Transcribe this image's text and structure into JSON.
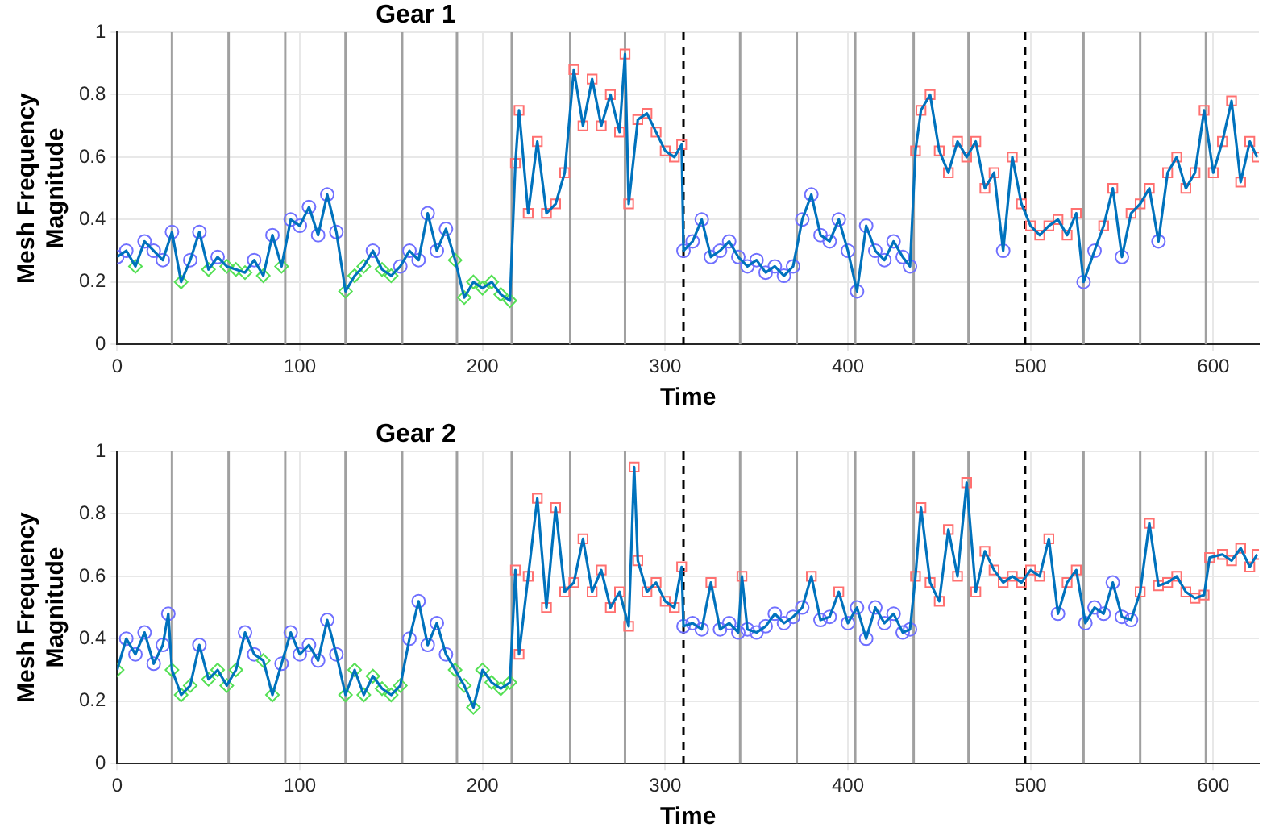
{
  "chart_data": [
    {
      "type": "line",
      "title": "Gear 1",
      "xlabel": "Time",
      "ylabel": "Mesh Frequency Magnitude",
      "xlim": [
        0,
        625
      ],
      "xticks": [
        0,
        100,
        200,
        300,
        400,
        500,
        600
      ],
      "ylim": [
        0,
        1
      ],
      "yticks": [
        0,
        0.2,
        0.4,
        0.6,
        0.8,
        1
      ],
      "grid": true,
      "legend": false,
      "ref_lines": [
        {
          "axis": "x",
          "value": 30,
          "color": "#a0a0a0"
        },
        {
          "axis": "x",
          "value": 61,
          "color": "#a0a0a0"
        },
        {
          "axis": "x",
          "value": 92,
          "color": "#a0a0a0"
        },
        {
          "axis": "x",
          "value": 125,
          "color": "#a0a0a0"
        },
        {
          "axis": "x",
          "value": 156,
          "color": "#a0a0a0"
        },
        {
          "axis": "x",
          "value": 186,
          "color": "#a0a0a0"
        },
        {
          "axis": "x",
          "value": 216,
          "color": "#a0a0a0"
        },
        {
          "axis": "x",
          "value": 248,
          "color": "#a0a0a0"
        },
        {
          "axis": "x",
          "value": 278,
          "color": "#a0a0a0"
        },
        {
          "axis": "x",
          "value": 341,
          "color": "#a0a0a0"
        },
        {
          "axis": "x",
          "value": 372,
          "color": "#a0a0a0"
        },
        {
          "axis": "x",
          "value": 404,
          "color": "#a0a0a0"
        },
        {
          "axis": "x",
          "value": 436,
          "color": "#a0a0a0"
        },
        {
          "axis": "x",
          "value": 466,
          "color": "#a0a0a0"
        },
        {
          "axis": "x",
          "value": 529,
          "color": "#a0a0a0"
        },
        {
          "axis": "x",
          "value": 560,
          "color": "#a0a0a0"
        },
        {
          "axis": "x",
          "value": 596,
          "color": "#a0a0a0"
        },
        {
          "axis": "x",
          "value": 310,
          "color": "#000000",
          "line_style": "dashed"
        },
        {
          "axis": "x",
          "value": 497,
          "color": "#000000",
          "line_style": "dashed"
        }
      ],
      "series": [
        {
          "type": "line",
          "color": "#0072bd",
          "marker": "none",
          "x": [
            0,
            5,
            10,
            15,
            20,
            25,
            30,
            35,
            40,
            45,
            50,
            55,
            60,
            65,
            70,
            75,
            80,
            85,
            90,
            95,
            100,
            105,
            110,
            115,
            120,
            125,
            130,
            135,
            140,
            145,
            150,
            155,
            160,
            165,
            170,
            175,
            180,
            185,
            190,
            195,
            200,
            205,
            210,
            215,
            218,
            220,
            225,
            230,
            235,
            240,
            245,
            250,
            255,
            260,
            265,
            270,
            275,
            278,
            280,
            285,
            290,
            295,
            300,
            305,
            309,
            310,
            315,
            320,
            325,
            330,
            335,
            340,
            345,
            350,
            355,
            360,
            365,
            370,
            375,
            380,
            385,
            390,
            395,
            400,
            405,
            410,
            415,
            420,
            425,
            430,
            434,
            437,
            440,
            445,
            450,
            455,
            460,
            465,
            470,
            475,
            480,
            485,
            490,
            495,
            500,
            505,
            510,
            515,
            520,
            525,
            529,
            535,
            540,
            545,
            550,
            555,
            560,
            565,
            570,
            575,
            580,
            585,
            590,
            595,
            600,
            605,
            610,
            615,
            620,
            624
          ],
          "values": [
            0.28,
            0.3,
            0.25,
            0.33,
            0.3,
            0.27,
            0.36,
            0.2,
            0.27,
            0.36,
            0.24,
            0.28,
            0.25,
            0.24,
            0.23,
            0.27,
            0.22,
            0.35,
            0.25,
            0.4,
            0.38,
            0.44,
            0.35,
            0.48,
            0.36,
            0.17,
            0.22,
            0.25,
            0.3,
            0.24,
            0.22,
            0.25,
            0.3,
            0.27,
            0.42,
            0.3,
            0.37,
            0.27,
            0.15,
            0.2,
            0.18,
            0.2,
            0.16,
            0.14,
            0.58,
            0.75,
            0.42,
            0.65,
            0.42,
            0.45,
            0.55,
            0.88,
            0.7,
            0.85,
            0.7,
            0.8,
            0.68,
            0.93,
            0.45,
            0.72,
            0.74,
            0.68,
            0.62,
            0.6,
            0.64,
            0.3,
            0.33,
            0.4,
            0.28,
            0.3,
            0.33,
            0.28,
            0.25,
            0.27,
            0.23,
            0.25,
            0.22,
            0.25,
            0.4,
            0.48,
            0.35,
            0.33,
            0.4,
            0.3,
            0.17,
            0.38,
            0.3,
            0.27,
            0.33,
            0.28,
            0.25,
            0.62,
            0.75,
            0.8,
            0.62,
            0.55,
            0.65,
            0.6,
            0.65,
            0.5,
            0.55,
            0.3,
            0.6,
            0.45,
            0.38,
            0.35,
            0.38,
            0.4,
            0.35,
            0.42,
            0.2,
            0.3,
            0.38,
            0.5,
            0.28,
            0.42,
            0.45,
            0.5,
            0.33,
            0.55,
            0.6,
            0.5,
            0.55,
            0.75,
            0.55,
            0.65,
            0.78,
            0.52,
            0.65,
            0.6
          ]
        },
        {
          "type": "scatter",
          "color": "#55e055",
          "marker": "diamond",
          "x": [
            10,
            35,
            50,
            60,
            65,
            70,
            80,
            90,
            125,
            130,
            135,
            145,
            150,
            185,
            190,
            195,
            200,
            205,
            210,
            215
          ],
          "values": [
            0.25,
            0.2,
            0.24,
            0.25,
            0.24,
            0.23,
            0.22,
            0.25,
            0.17,
            0.22,
            0.25,
            0.24,
            0.22,
            0.27,
            0.15,
            0.2,
            0.18,
            0.2,
            0.16,
            0.14
          ]
        },
        {
          "type": "scatter",
          "color": "#7070ff",
          "marker": "circle",
          "x": [
            0,
            5,
            15,
            20,
            25,
            30,
            40,
            45,
            55,
            75,
            85,
            95,
            100,
            105,
            110,
            115,
            120,
            140,
            155,
            160,
            165,
            170,
            175,
            180,
            310,
            315,
            320,
            325,
            330,
            335,
            340,
            345,
            350,
            355,
            360,
            365,
            370,
            375,
            380,
            385,
            390,
            395,
            400,
            405,
            410,
            415,
            420,
            425,
            430,
            434,
            485,
            529,
            535,
            550,
            570
          ],
          "values": [
            0.28,
            0.3,
            0.33,
            0.3,
            0.27,
            0.36,
            0.27,
            0.36,
            0.28,
            0.27,
            0.35,
            0.4,
            0.38,
            0.44,
            0.35,
            0.48,
            0.36,
            0.3,
            0.25,
            0.3,
            0.27,
            0.42,
            0.3,
            0.37,
            0.3,
            0.33,
            0.4,
            0.28,
            0.3,
            0.33,
            0.28,
            0.25,
            0.27,
            0.23,
            0.25,
            0.22,
            0.25,
            0.4,
            0.48,
            0.35,
            0.33,
            0.4,
            0.3,
            0.17,
            0.38,
            0.3,
            0.27,
            0.33,
            0.28,
            0.25,
            0.3,
            0.2,
            0.3,
            0.28,
            0.33
          ]
        },
        {
          "type": "scatter",
          "color": "#ff7070",
          "marker": "square",
          "x": [
            218,
            220,
            225,
            230,
            235,
            240,
            245,
            250,
            255,
            260,
            265,
            270,
            275,
            278,
            280,
            285,
            290,
            295,
            300,
            305,
            309,
            437,
            440,
            445,
            450,
            455,
            460,
            465,
            470,
            475,
            480,
            490,
            495,
            500,
            505,
            510,
            515,
            520,
            525,
            540,
            545,
            555,
            560,
            565,
            575,
            580,
            585,
            590,
            595,
            600,
            605,
            610,
            615,
            620,
            624
          ],
          "values": [
            0.58,
            0.75,
            0.42,
            0.65,
            0.42,
            0.45,
            0.55,
            0.88,
            0.7,
            0.85,
            0.7,
            0.8,
            0.68,
            0.93,
            0.45,
            0.72,
            0.74,
            0.68,
            0.62,
            0.6,
            0.64,
            0.62,
            0.75,
            0.8,
            0.62,
            0.55,
            0.65,
            0.6,
            0.65,
            0.5,
            0.55,
            0.6,
            0.45,
            0.38,
            0.35,
            0.38,
            0.4,
            0.35,
            0.42,
            0.38,
            0.5,
            0.42,
            0.45,
            0.5,
            0.55,
            0.6,
            0.5,
            0.55,
            0.75,
            0.55,
            0.65,
            0.78,
            0.52,
            0.65,
            0.6
          ]
        }
      ]
    },
    {
      "type": "line",
      "title": "Gear 2",
      "xlabel": "Time",
      "ylabel": "Mesh Frequency Magnitude",
      "xlim": [
        0,
        625
      ],
      "xticks": [
        0,
        100,
        200,
        300,
        400,
        500,
        600
      ],
      "ylim": [
        0,
        1
      ],
      "yticks": [
        0,
        0.2,
        0.4,
        0.6,
        0.8,
        1
      ],
      "grid": true,
      "legend": false,
      "ref_lines": [
        {
          "axis": "x",
          "value": 30,
          "color": "#a0a0a0"
        },
        {
          "axis": "x",
          "value": 61,
          "color": "#a0a0a0"
        },
        {
          "axis": "x",
          "value": 92,
          "color": "#a0a0a0"
        },
        {
          "axis": "x",
          "value": 125,
          "color": "#a0a0a0"
        },
        {
          "axis": "x",
          "value": 156,
          "color": "#a0a0a0"
        },
        {
          "axis": "x",
          "value": 186,
          "color": "#a0a0a0"
        },
        {
          "axis": "x",
          "value": 216,
          "color": "#a0a0a0"
        },
        {
          "axis": "x",
          "value": 248,
          "color": "#a0a0a0"
        },
        {
          "axis": "x",
          "value": 278,
          "color": "#a0a0a0"
        },
        {
          "axis": "x",
          "value": 341,
          "color": "#a0a0a0"
        },
        {
          "axis": "x",
          "value": 372,
          "color": "#a0a0a0"
        },
        {
          "axis": "x",
          "value": 404,
          "color": "#a0a0a0"
        },
        {
          "axis": "x",
          "value": 436,
          "color": "#a0a0a0"
        },
        {
          "axis": "x",
          "value": 466,
          "color": "#a0a0a0"
        },
        {
          "axis": "x",
          "value": 529,
          "color": "#a0a0a0"
        },
        {
          "axis": "x",
          "value": 560,
          "color": "#a0a0a0"
        },
        {
          "axis": "x",
          "value": 596,
          "color": "#a0a0a0"
        },
        {
          "axis": "x",
          "value": 310,
          "color": "#000000",
          "line_style": "dashed"
        },
        {
          "axis": "x",
          "value": 497,
          "color": "#000000",
          "line_style": "dashed"
        }
      ],
      "series": [
        {
          "type": "line",
          "color": "#0072bd",
          "marker": "none",
          "x": [
            0,
            5,
            10,
            15,
            20,
            25,
            28,
            30,
            35,
            40,
            45,
            50,
            55,
            60,
            65,
            70,
            75,
            80,
            85,
            90,
            95,
            100,
            105,
            110,
            115,
            120,
            125,
            130,
            135,
            140,
            145,
            150,
            155,
            160,
            165,
            170,
            175,
            180,
            185,
            190,
            195,
            200,
            205,
            210,
            215,
            218,
            220,
            225,
            230,
            235,
            240,
            245,
            250,
            255,
            260,
            265,
            270,
            275,
            280,
            283,
            285,
            290,
            295,
            300,
            305,
            309,
            310,
            315,
            320,
            325,
            330,
            335,
            340,
            342,
            345,
            350,
            355,
            360,
            365,
            370,
            375,
            380,
            385,
            390,
            395,
            400,
            405,
            410,
            415,
            420,
            425,
            430,
            434,
            437,
            440,
            445,
            450,
            455,
            460,
            465,
            470,
            475,
            480,
            485,
            490,
            495,
            500,
            505,
            510,
            515,
            520,
            525,
            530,
            535,
            540,
            545,
            550,
            555,
            560,
            565,
            570,
            575,
            580,
            585,
            590,
            595,
            598,
            605,
            610,
            615,
            620,
            624
          ],
          "values": [
            0.3,
            0.4,
            0.35,
            0.42,
            0.32,
            0.38,
            0.48,
            0.3,
            0.22,
            0.25,
            0.38,
            0.27,
            0.3,
            0.25,
            0.3,
            0.42,
            0.35,
            0.33,
            0.22,
            0.32,
            0.42,
            0.35,
            0.38,
            0.33,
            0.46,
            0.35,
            0.22,
            0.3,
            0.22,
            0.28,
            0.24,
            0.22,
            0.25,
            0.4,
            0.52,
            0.38,
            0.45,
            0.35,
            0.3,
            0.25,
            0.18,
            0.3,
            0.26,
            0.24,
            0.26,
            0.62,
            0.35,
            0.6,
            0.85,
            0.5,
            0.82,
            0.55,
            0.58,
            0.72,
            0.55,
            0.62,
            0.5,
            0.55,
            0.44,
            0.95,
            0.65,
            0.55,
            0.58,
            0.52,
            0.5,
            0.63,
            0.44,
            0.45,
            0.43,
            0.58,
            0.43,
            0.45,
            0.42,
            0.6,
            0.43,
            0.42,
            0.44,
            0.48,
            0.45,
            0.47,
            0.5,
            0.6,
            0.46,
            0.47,
            0.55,
            0.45,
            0.5,
            0.4,
            0.5,
            0.45,
            0.48,
            0.42,
            0.43,
            0.6,
            0.82,
            0.58,
            0.52,
            0.75,
            0.6,
            0.9,
            0.55,
            0.68,
            0.62,
            0.58,
            0.6,
            0.58,
            0.62,
            0.6,
            0.72,
            0.48,
            0.58,
            0.62,
            0.45,
            0.5,
            0.48,
            0.58,
            0.47,
            0.46,
            0.55,
            0.77,
            0.57,
            0.58,
            0.6,
            0.55,
            0.53,
            0.54,
            0.66,
            0.67,
            0.65,
            0.69,
            0.63,
            0.67
          ]
        },
        {
          "type": "scatter",
          "color": "#55e055",
          "marker": "diamond",
          "x": [
            0,
            30,
            35,
            40,
            50,
            55,
            60,
            65,
            80,
            85,
            125,
            130,
            135,
            140,
            145,
            150,
            155,
            185,
            190,
            195,
            200,
            205,
            210,
            215
          ],
          "values": [
            0.3,
            0.3,
            0.22,
            0.25,
            0.27,
            0.3,
            0.25,
            0.3,
            0.33,
            0.22,
            0.22,
            0.3,
            0.22,
            0.28,
            0.24,
            0.22,
            0.25,
            0.3,
            0.25,
            0.18,
            0.3,
            0.26,
            0.24,
            0.26
          ]
        },
        {
          "type": "scatter",
          "color": "#7070ff",
          "marker": "circle",
          "x": [
            5,
            10,
            15,
            20,
            25,
            28,
            45,
            70,
            75,
            90,
            95,
            100,
            105,
            110,
            115,
            120,
            160,
            165,
            170,
            175,
            180,
            310,
            315,
            320,
            330,
            335,
            340,
            345,
            350,
            355,
            360,
            365,
            370,
            375,
            385,
            390,
            400,
            405,
            410,
            415,
            420,
            425,
            430,
            434,
            515,
            530,
            535,
            540,
            545,
            550,
            555
          ],
          "values": [
            0.4,
            0.35,
            0.42,
            0.32,
            0.38,
            0.48,
            0.38,
            0.42,
            0.35,
            0.32,
            0.42,
            0.35,
            0.38,
            0.33,
            0.46,
            0.35,
            0.4,
            0.52,
            0.38,
            0.45,
            0.35,
            0.44,
            0.45,
            0.43,
            0.43,
            0.45,
            0.42,
            0.43,
            0.42,
            0.44,
            0.48,
            0.45,
            0.47,
            0.5,
            0.46,
            0.47,
            0.45,
            0.5,
            0.4,
            0.5,
            0.45,
            0.48,
            0.42,
            0.43,
            0.48,
            0.45,
            0.5,
            0.48,
            0.58,
            0.47,
            0.46
          ]
        },
        {
          "type": "scatter",
          "color": "#ff7070",
          "marker": "square",
          "x": [
            218,
            220,
            225,
            230,
            235,
            240,
            245,
            250,
            255,
            260,
            265,
            270,
            275,
            280,
            283,
            285,
            290,
            295,
            300,
            305,
            309,
            325,
            342,
            380,
            395,
            437,
            440,
            445,
            450,
            455,
            460,
            465,
            470,
            475,
            480,
            485,
            490,
            495,
            500,
            505,
            510,
            520,
            525,
            560,
            565,
            570,
            575,
            580,
            585,
            590,
            595,
            598,
            605,
            610,
            615,
            620,
            624
          ],
          "values": [
            0.62,
            0.35,
            0.6,
            0.85,
            0.5,
            0.82,
            0.55,
            0.58,
            0.72,
            0.55,
            0.62,
            0.5,
            0.55,
            0.44,
            0.95,
            0.65,
            0.55,
            0.58,
            0.52,
            0.5,
            0.63,
            0.58,
            0.6,
            0.6,
            0.55,
            0.6,
            0.82,
            0.58,
            0.52,
            0.75,
            0.6,
            0.9,
            0.55,
            0.68,
            0.62,
            0.58,
            0.6,
            0.58,
            0.62,
            0.6,
            0.72,
            0.58,
            0.62,
            0.55,
            0.77,
            0.57,
            0.58,
            0.6,
            0.55,
            0.53,
            0.54,
            0.66,
            0.67,
            0.65,
            0.69,
            0.63,
            0.67
          ]
        }
      ]
    }
  ]
}
